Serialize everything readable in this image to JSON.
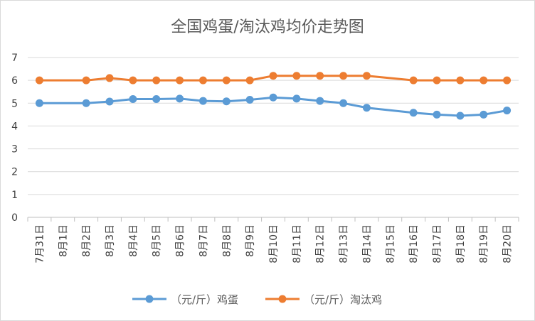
{
  "chart_data": {
    "type": "line",
    "title": "全国鸡蛋/淘汰鸡均价走势图",
    "xlabel": "",
    "ylabel": "",
    "categories": [
      "7月31日",
      "8月1日",
      "8月2日",
      "8月3日",
      "8月4日",
      "8月5日",
      "8月6日",
      "8月7日",
      "8月8日",
      "8月9日",
      "8月10日",
      "8月11日",
      "8月12日",
      "8月13日",
      "8月14日",
      "8月15日",
      "8月16日",
      "8月17日",
      "8月18日",
      "8月19日",
      "8月20日"
    ],
    "ylim": [
      0,
      7
    ],
    "yticks": [
      "0",
      "1",
      "2",
      "3",
      "4",
      "5",
      "6",
      "7"
    ],
    "grid": true,
    "legend_position": "bottom",
    "series": [
      {
        "name": "（元/斤）鸡蛋",
        "color": "#5b9bd5",
        "values": [
          5.0,
          null,
          5.0,
          5.07,
          5.18,
          5.18,
          5.2,
          5.1,
          5.08,
          5.15,
          5.25,
          5.2,
          5.1,
          5.0,
          4.8,
          null,
          4.58,
          4.5,
          4.45,
          4.5,
          4.68
        ]
      },
      {
        "name": "（元/斤）淘汰鸡",
        "color": "#ed7d31",
        "values": [
          6.0,
          null,
          6.0,
          6.1,
          6.0,
          6.0,
          6.0,
          6.0,
          6.0,
          6.0,
          6.2,
          6.2,
          6.2,
          6.2,
          6.2,
          null,
          6.0,
          6.0,
          6.0,
          6.0,
          6.0
        ]
      }
    ]
  }
}
